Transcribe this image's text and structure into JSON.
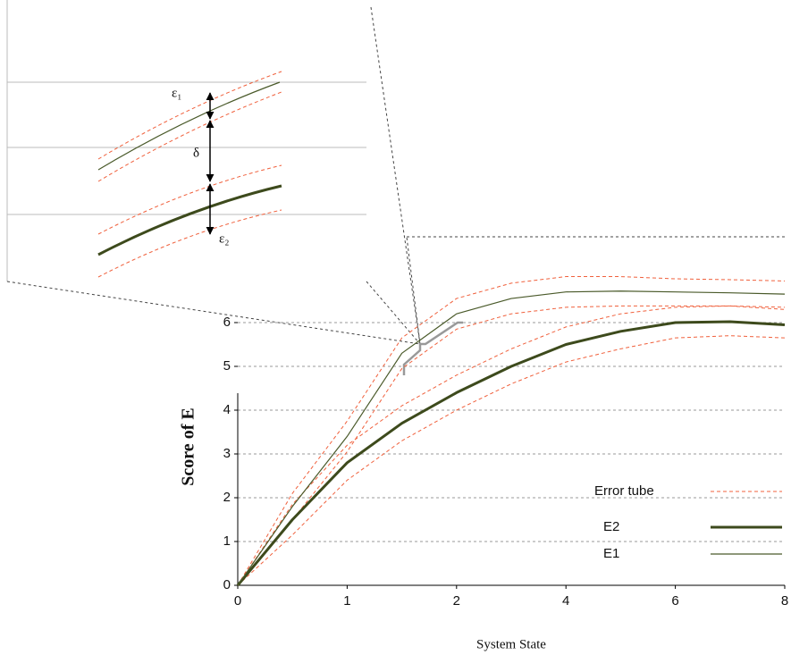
{
  "chart_data": {
    "type": "line",
    "x_label": "System State",
    "y_label": "Score of E",
    "x": [
      0,
      0.5,
      1,
      1.5,
      2,
      2.5,
      3,
      3.5,
      4,
      4.5,
      5
    ],
    "xlim": [
      0,
      5
    ],
    "xticks": [
      {
        "value": 0,
        "label": "0"
      },
      {
        "value": 1,
        "label": "1"
      },
      {
        "value": 2,
        "label": "2"
      },
      {
        "value": 3,
        "label": "4"
      },
      {
        "value": 4,
        "label": "6"
      },
      {
        "value": 5,
        "label": "8"
      }
    ],
    "ylim": [
      0,
      8
    ],
    "yticks": [
      0,
      1,
      2,
      3,
      4,
      5,
      6
    ],
    "grid": true,
    "series": [
      {
        "name": "E2",
        "color": "#3d4a1c",
        "width": 3,
        "values": [
          0,
          1.5,
          2.8,
          3.7,
          4.4,
          5.0,
          5.5,
          5.8,
          6.0,
          6.02,
          5.95
        ]
      },
      {
        "name": "E1",
        "color": "#4a5a2a",
        "width": 1.2,
        "values": [
          0,
          1.8,
          3.4,
          5.3,
          6.2,
          6.55,
          6.7,
          6.72,
          6.7,
          6.68,
          6.65
        ]
      }
    ],
    "error_tube": {
      "name": "Error tube",
      "color": "#f0603c",
      "lines": [
        [
          0,
          2.1,
          3.75,
          5.65,
          6.55,
          6.9,
          7.05,
          7.05,
          7.0,
          6.98,
          6.95
        ],
        [
          0,
          1.5,
          3.05,
          4.95,
          5.85,
          6.2,
          6.35,
          6.38,
          6.38,
          6.38,
          6.35
        ],
        [
          0,
          1.85,
          3.2,
          4.1,
          4.8,
          5.4,
          5.9,
          6.2,
          6.35,
          6.38,
          6.3
        ],
        [
          0,
          1.15,
          2.4,
          3.3,
          4.0,
          4.6,
          5.1,
          5.4,
          5.65,
          5.7,
          5.65
        ]
      ]
    },
    "inset_labels": [
      "ε₁",
      "δ",
      "ε₂"
    ]
  }
}
